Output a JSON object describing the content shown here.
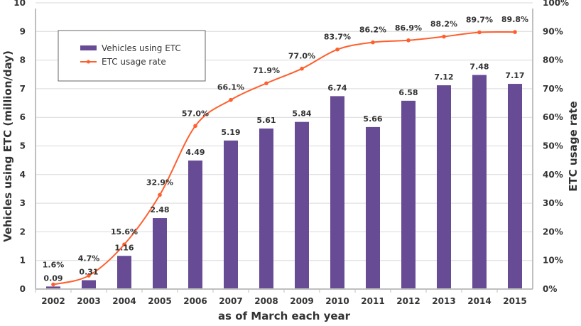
{
  "chart_data": {
    "type": "bar+line",
    "categories": [
      "2002",
      "2003",
      "2004",
      "2005",
      "2006",
      "2007",
      "2008",
      "2009",
      "2010",
      "2011",
      "2012",
      "2013",
      "2014",
      "2015"
    ],
    "series": [
      {
        "name": "Vehicles using ETC",
        "type": "bar",
        "axis": "left",
        "color": "#674b94",
        "values": [
          0.09,
          0.31,
          1.16,
          2.48,
          4.49,
          5.19,
          5.61,
          5.84,
          6.74,
          5.66,
          6.58,
          7.12,
          7.48,
          7.17
        ],
        "labels": [
          "0.09",
          "0.31",
          "1.16",
          "2.48",
          "4.49",
          "5.19",
          "5.61",
          "5.84",
          "6.74",
          "5.66",
          "6.58",
          "7.12",
          "7.48",
          "7.17"
        ]
      },
      {
        "name": "ETC usage rate",
        "type": "line",
        "axis": "right",
        "color": "#ff5f2e",
        "values": [
          1.6,
          4.7,
          15.6,
          32.9,
          57.0,
          66.1,
          71.9,
          77.0,
          83.7,
          86.2,
          86.9,
          88.2,
          89.7,
          89.8
        ],
        "labels": [
          "1.6%",
          "4.7%",
          "15.6%",
          "32.9%",
          "57.0%",
          "66.1%",
          "71.9%",
          "77.0%",
          "83.7%",
          "86.2%",
          "86.9%",
          "88.2%",
          "89.7%",
          "89.8%"
        ]
      }
    ],
    "xlabel": "as of March each year",
    "ylabel": "Vehicles using ETC (million/day)",
    "y2label": "ETC usage rate",
    "ylim": [
      0,
      10
    ],
    "y2lim": [
      0,
      100
    ],
    "yticks": [
      "0",
      "1",
      "2",
      "3",
      "4",
      "5",
      "6",
      "7",
      "8",
      "9",
      "10"
    ],
    "y2ticks": [
      "0%",
      "10%",
      "20%",
      "30%",
      "40%",
      "50%",
      "60%",
      "70%",
      "80%",
      "90%",
      "100%"
    ],
    "grid": true,
    "legend": "top-left"
  }
}
